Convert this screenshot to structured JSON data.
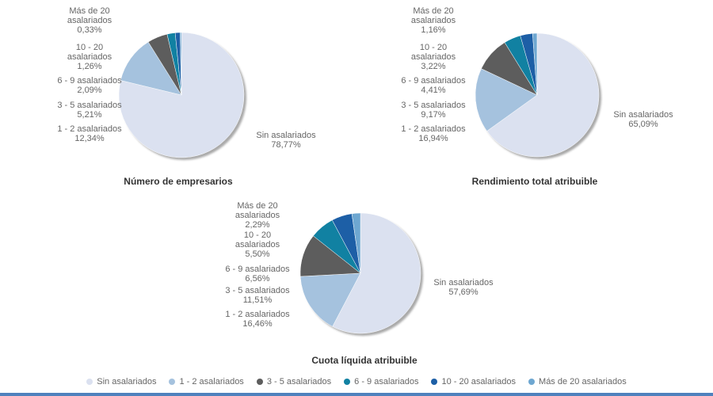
{
  "page": {
    "bottom_bar_color": "#4f81bd"
  },
  "colors": [
    "#dbe1f0",
    "#a5c2de",
    "#5d5d5d",
    "#1181a2",
    "#1d5fa6",
    "#6ea7d1"
  ],
  "legend": {
    "items": [
      {
        "label": "Sin asalariados"
      },
      {
        "label": "1 - 2 asalariados"
      },
      {
        "label": "3 - 5 asalariados"
      },
      {
        "label": "6 - 9 asalariados"
      },
      {
        "label": "10 - 20 asalariados"
      },
      {
        "label": "Más de 20 asalariados"
      }
    ]
  },
  "chart_data": [
    {
      "type": "pie",
      "title": "Número de empresarios",
      "legend_position": "bottom-shared",
      "slices": [
        {
          "name": "Sin asalariados",
          "value": 78.77,
          "pct": "78,77%",
          "l1": "Sin asalariados"
        },
        {
          "name": "1 - 2 asalariados",
          "value": 12.34,
          "pct": "12,34%",
          "l1": "1 - 2 asalariados"
        },
        {
          "name": "3 - 5 asalariados",
          "value": 5.21,
          "pct": "5,21%",
          "l1": "3 - 5 asalariados"
        },
        {
          "name": "6 - 9 asalariados",
          "value": 2.09,
          "pct": "2,09%",
          "l1": "6 - 9 asalariados"
        },
        {
          "name": "10 - 20 asalariados",
          "value": 1.26,
          "pct": "1,26%",
          "l1": "10 - 20",
          "l2": "asalariados"
        },
        {
          "name": "Más de 20 asalariados",
          "value": 0.33,
          "pct": "0,33%",
          "l1": "Más de 20",
          "l2": "asalariados"
        }
      ]
    },
    {
      "type": "pie",
      "title": "Rendimiento total atribuible",
      "legend_position": "bottom-shared",
      "slices": [
        {
          "name": "Sin asalariados",
          "value": 65.09,
          "pct": "65,09%",
          "l1": "Sin asalariados"
        },
        {
          "name": "1 - 2 asalariados",
          "value": 16.94,
          "pct": "16,94%",
          "l1": "1 - 2 asalariados"
        },
        {
          "name": "3 - 5 asalariados",
          "value": 9.17,
          "pct": "9,17%",
          "l1": "3 - 5 asalariados"
        },
        {
          "name": "6 - 9 asalariados",
          "value": 4.41,
          "pct": "4,41%",
          "l1": "6 - 9 asalariados"
        },
        {
          "name": "10 - 20 asalariados",
          "value": 3.22,
          "pct": "3,22%",
          "l1": "10 - 20",
          "l2": "asalariados"
        },
        {
          "name": "Más de 20 asalariados",
          "value": 1.16,
          "pct": "1,16%",
          "l1": "Más de 20",
          "l2": "asalariados"
        }
      ]
    },
    {
      "type": "pie",
      "title": "Cuota líquida atribuible",
      "legend_position": "bottom-shared",
      "slices": [
        {
          "name": "Sin asalariados",
          "value": 57.69,
          "pct": "57,69%",
          "l1": "Sin asalariados"
        },
        {
          "name": "1 - 2 asalariados",
          "value": 16.46,
          "pct": "16,46%",
          "l1": "1 - 2 asalariados"
        },
        {
          "name": "3 - 5 asalariados",
          "value": 11.51,
          "pct": "11,51%",
          "l1": "3 - 5 asalariados"
        },
        {
          "name": "6 - 9 asalariados",
          "value": 6.56,
          "pct": "6,56%",
          "l1": "6 - 9 asalariados"
        },
        {
          "name": "10 - 20 asalariados",
          "value": 5.5,
          "pct": "5,50%",
          "l1": "10 - 20",
          "l2": "asalariados"
        },
        {
          "name": "Más de 20 asalariados",
          "value": 2.29,
          "pct": "2,29%",
          "l1": "Más de 20",
          "l2": "asalariados"
        }
      ]
    }
  ]
}
